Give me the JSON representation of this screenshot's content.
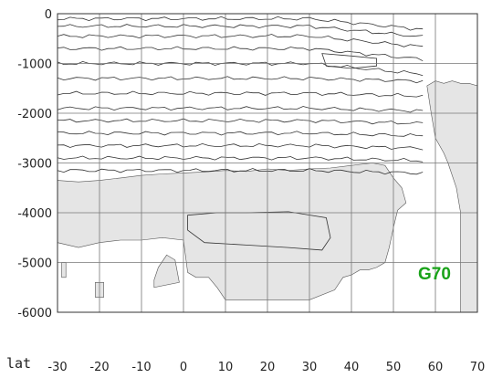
{
  "chart_data": {
    "type": "contour",
    "title": "",
    "xlabel": "lat",
    "ylabel": "",
    "x_ticks": [
      -30,
      -20,
      -10,
      0,
      10,
      20,
      30,
      40,
      50,
      60,
      70
    ],
    "y_ticks": [
      0,
      -1000,
      -2000,
      -3000,
      -4000,
      -5000,
      -6000
    ],
    "xlim": [
      -30,
      70
    ],
    "ylim": [
      -6000,
      0
    ],
    "grid": true,
    "annotation": "G70",
    "colors": {
      "land_fill": "#e5e5e5",
      "contour": "#333333",
      "grid": "#777777",
      "annotation": "#1aa31a"
    }
  }
}
